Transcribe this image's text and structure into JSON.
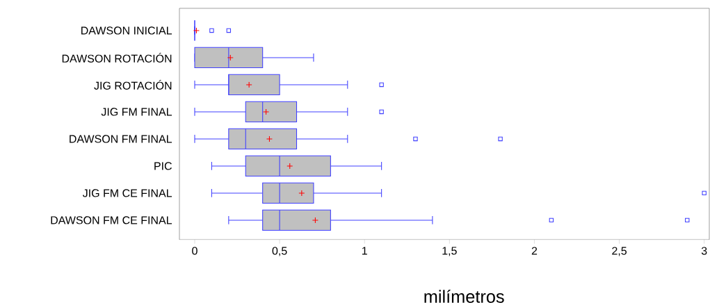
{
  "chart_data": {
    "type": "box",
    "orientation": "horizontal",
    "xlabel": "milímetros",
    "categories": [
      "DAWSON INICIAL",
      "DAWSON  ROTACIÓN",
      "JIG ROTACIÓN",
      "JIG FM FINAL",
      "DAWSON FM FINAL",
      "PIC",
      "JIG FM CE FINAL",
      "DAWSON FM CE FINAL"
    ],
    "boxes": [
      {
        "low": 0,
        "q1": 0,
        "median": 0,
        "q3": 0,
        "high": 0,
        "mean": 0.01,
        "outliers": [
          0.1,
          0.2
        ]
      },
      {
        "low": 0,
        "q1": 0,
        "median": 0.2,
        "q3": 0.4,
        "high": 0.7,
        "mean": 0.21
      },
      {
        "low": 0,
        "q1": 0.2,
        "median": 0.2,
        "q3": 0.5,
        "high": 0.9,
        "mean": 0.32,
        "outliers": [
          1.1
        ]
      },
      {
        "low": 0,
        "q1": 0.3,
        "median": 0.4,
        "q3": 0.6,
        "high": 0.9,
        "mean": 0.42,
        "outliers": [
          1.1
        ]
      },
      {
        "low": 0,
        "q1": 0.2,
        "median": 0.3,
        "q3": 0.6,
        "high": 0.9,
        "mean": 0.44,
        "outliers": [
          1.3,
          1.8
        ]
      },
      {
        "low": 0.1,
        "q1": 0.3,
        "median": 0.5,
        "q3": 0.8,
        "high": 1.1,
        "mean": 0.56
      },
      {
        "low": 0.1,
        "q1": 0.4,
        "median": 0.5,
        "q3": 0.7,
        "high": 1.1,
        "mean": 0.63,
        "outliers": [
          3.0
        ]
      },
      {
        "low": 0.2,
        "q1": 0.4,
        "median": 0.5,
        "q3": 0.8,
        "high": 1.4,
        "mean": 0.71,
        "outliers": [
          2.1,
          2.9
        ]
      }
    ],
    "color": "#4040ff",
    "marker": "square",
    "xlim": [
      -0.09,
      3.03
    ],
    "xticks": [
      0,
      {
        "value": 0.5,
        "label": "0,5"
      },
      1,
      {
        "value": 1.5,
        "label": "1,5"
      },
      2,
      {
        "value": 2.5,
        "label": "2,5"
      },
      3
    ]
  }
}
